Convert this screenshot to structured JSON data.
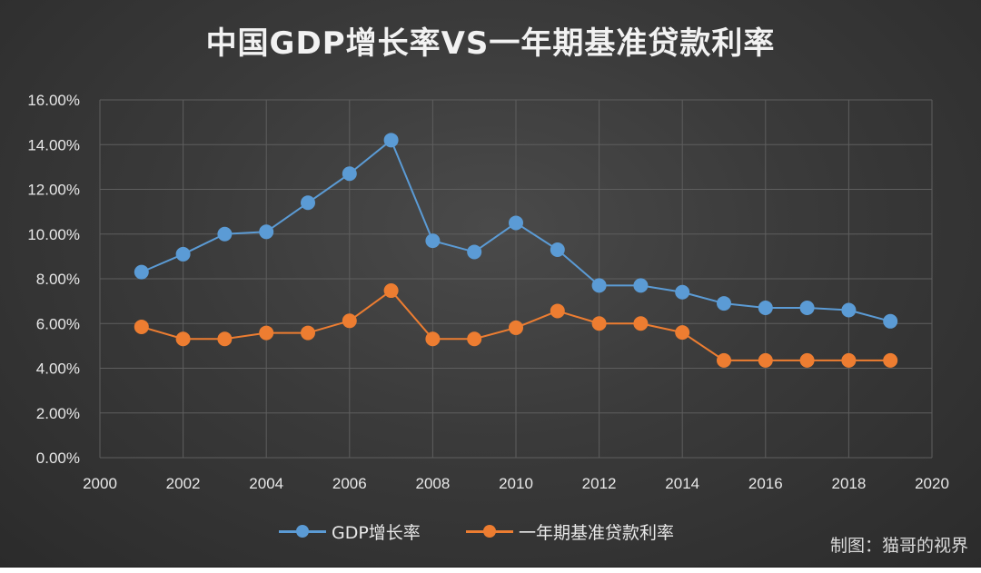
{
  "chart_data": {
    "type": "line",
    "title": "中国GDP增长率VS一年期基准贷款利率",
    "x": [
      2001,
      2002,
      2003,
      2004,
      2005,
      2006,
      2007,
      2008,
      2009,
      2010,
      2011,
      2012,
      2013,
      2014,
      2015,
      2016,
      2017,
      2018,
      2019
    ],
    "xlim": [
      2000,
      2020
    ],
    "x_ticks": [
      "2000",
      "2002",
      "2004",
      "2006",
      "2008",
      "2010",
      "2012",
      "2014",
      "2016",
      "2018",
      "2020"
    ],
    "ylim": [
      0,
      16
    ],
    "y_ticks": [
      "0.00%",
      "2.00%",
      "4.00%",
      "6.00%",
      "8.00%",
      "10.00%",
      "12.00%",
      "14.00%",
      "16.00%"
    ],
    "y_tick_values": [
      0,
      2,
      4,
      6,
      8,
      10,
      12,
      14,
      16
    ],
    "x_tick_values": [
      2000,
      2002,
      2004,
      2006,
      2008,
      2010,
      2012,
      2014,
      2016,
      2018,
      2020
    ],
    "grid": true,
    "legend_position": "bottom",
    "series": [
      {
        "name": "GDP增长率",
        "color": "#5b9bd5",
        "values": [
          8.3,
          9.1,
          10.0,
          10.1,
          11.4,
          12.7,
          14.2,
          9.7,
          9.2,
          10.5,
          9.3,
          7.7,
          7.7,
          7.4,
          6.9,
          6.7,
          6.7,
          6.6,
          6.1
        ]
      },
      {
        "name": "一年期基准贷款利率",
        "color": "#ed7d31",
        "values": [
          5.85,
          5.31,
          5.31,
          5.58,
          5.58,
          6.12,
          7.47,
          5.31,
          5.31,
          5.81,
          6.56,
          6.0,
          6.0,
          5.6,
          4.35,
          4.35,
          4.35,
          4.35,
          4.35
        ]
      }
    ]
  },
  "credit": "制图：猫哥的视界"
}
